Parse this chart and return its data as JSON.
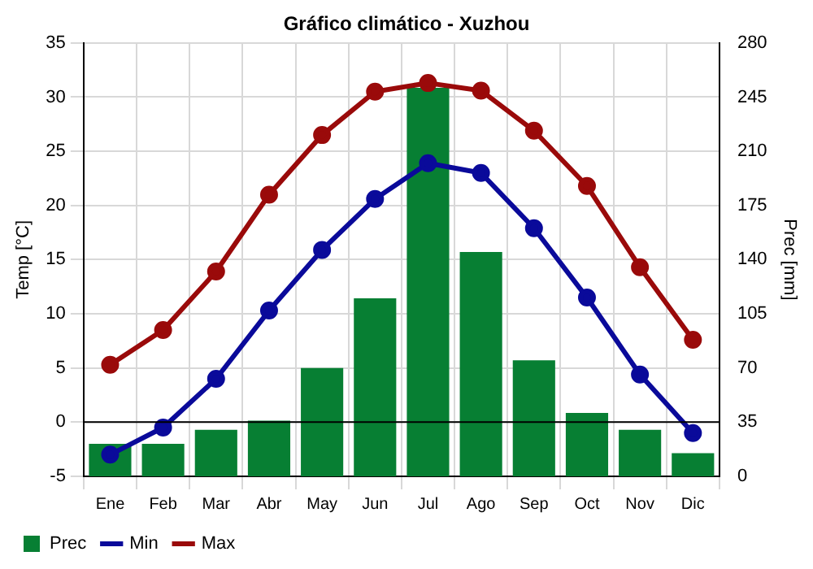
{
  "chart_data": {
    "type": "line",
    "title": "Gráfico climático - Xuzhou",
    "ylabel": "Temp [°C]",
    "y2label": "Prec [mm]",
    "categories": [
      "Ene",
      "Feb",
      "Mar",
      "Abr",
      "May",
      "Jun",
      "Jul",
      "Ago",
      "Sep",
      "Oct",
      "Nov",
      "Dic"
    ],
    "series": [
      {
        "name": "Prec",
        "type": "bar",
        "axis": "y2",
        "color": "#077f33",
        "values": [
          21,
          21,
          30,
          36,
          70,
          115,
          251,
          145,
          75,
          41,
          30,
          15
        ]
      },
      {
        "name": "Min",
        "color": "#0a0a9a",
        "values": [
          -3.0,
          -0.5,
          4.0,
          10.3,
          15.9,
          20.6,
          23.9,
          23.0,
          17.9,
          11.5,
          4.4,
          -1.0
        ]
      },
      {
        "name": "Max",
        "color": "#9a0a0a",
        "values": [
          5.3,
          8.5,
          13.9,
          21.0,
          26.5,
          30.5,
          31.3,
          30.6,
          26.9,
          21.8,
          14.3,
          7.6
        ]
      }
    ],
    "ylim": [
      -5,
      35
    ],
    "yticks": [
      -5,
      0,
      5,
      10,
      15,
      20,
      25,
      30,
      35
    ],
    "y2lim": [
      0,
      280
    ],
    "y2ticks": [
      0,
      35,
      70,
      105,
      140,
      175,
      210,
      245,
      280
    ],
    "ref_lines": [
      {
        "axis": "y",
        "value": 0,
        "color": "#000000"
      }
    ],
    "grid": true,
    "legend": "bottom left",
    "marker": "circle",
    "line_style": "solid"
  }
}
